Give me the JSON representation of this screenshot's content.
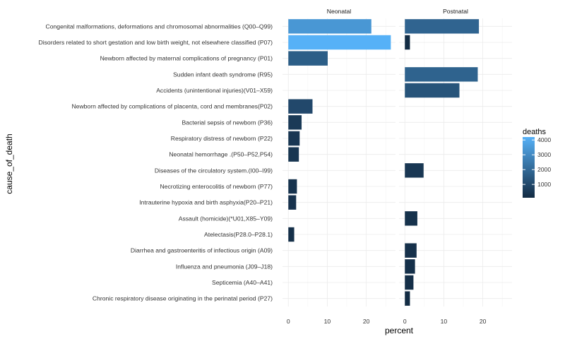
{
  "chart_data": {
    "type": "bar",
    "orientation": "horizontal",
    "xlabel": "percent",
    "ylabel": "cause_of_death",
    "xlim": [
      -1.5,
      27.5
    ],
    "xticks": [
      0,
      10,
      20
    ],
    "grid": true,
    "facets": [
      "Neonatal",
      "Postnatal"
    ],
    "categories": [
      "Congenital malformations, deformations and chromosomal abnormalities (Q00–Q99)",
      "Disorders related to short gestation and low birth weight, not elsewhere classified (P07)",
      "Newborn affected by maternal complications of pregnancy (P01)",
      "Sudden infant death syndrome (R95)",
      "Accidents (unintentional injuries)(V01–X59)",
      "Newborn affected by complications of placenta, cord and membranes(P02)",
      "Bacterial sepsis of newborn (P36)",
      "Respiratory distress of newborn (P22)",
      "Neonatal hemorrhage .(P50–P52,P54)",
      "Diseases of the circulatory system.(I00–I99)",
      "Necrotizing enterocolitis of newborn (P77)",
      "Intrauterine hypoxia and birth asphyxia(P20–P21)",
      "Assault (homicide)(*U01,X85–Y09)",
      "Atelectasis(P28.0–P28.1)",
      "Diarrhea and gastroenteritis of infectious origin (A09)",
      "Influenza and pneumonia (J09–J18)",
      "Septicemia (A40–A41)",
      "Chronic respiratory disease originating in the perinatal period (P27)"
    ],
    "series": [
      {
        "name": "Neonatal",
        "percent": [
          21.3,
          26.3,
          10.1,
          null,
          null,
          6.2,
          3.4,
          2.9,
          2.7,
          null,
          2.2,
          2.0,
          null,
          1.5,
          null,
          null,
          null,
          null
        ],
        "deaths": [
          3400,
          4200,
          1650,
          null,
          null,
          1000,
          550,
          460,
          430,
          null,
          350,
          320,
          null,
          240,
          null,
          null,
          null,
          null
        ]
      },
      {
        "name": "Postnatal",
        "percent": [
          19.0,
          1.3,
          null,
          18.7,
          14.0,
          null,
          null,
          null,
          null,
          4.8,
          null,
          null,
          3.2,
          null,
          3.0,
          2.6,
          2.2,
          1.3
        ],
        "deaths": [
          1850,
          125,
          null,
          1800,
          1350,
          null,
          null,
          null,
          null,
          460,
          null,
          null,
          310,
          null,
          290,
          250,
          210,
          125
        ]
      }
    ],
    "legend": {
      "title": "deaths",
      "placement": "right",
      "ticks": [
        1000,
        2000,
        3000,
        4000
      ],
      "range": [
        100,
        4200
      ],
      "color_low": "#132B43",
      "color_high": "#56B1F7"
    }
  }
}
